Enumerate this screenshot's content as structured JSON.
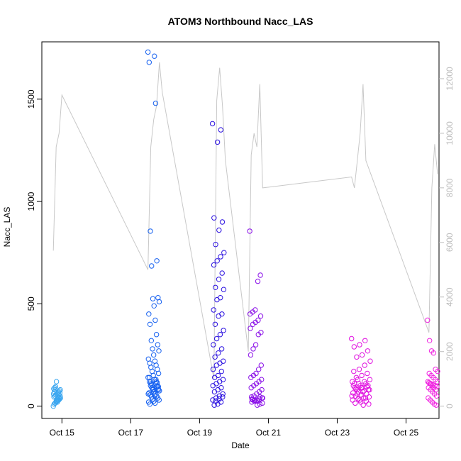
{
  "chart_data": {
    "type": "scatter",
    "title": "ATOM3 Northbound Nacc_LAS",
    "xlabel": "Date",
    "ylabel": "Nacc_LAS",
    "x_ticks": [
      "Oct 15",
      "Oct 17",
      "Oct 19",
      "Oct 21",
      "Oct 23",
      "Oct 25"
    ],
    "y_ticks": [
      0,
      500,
      1000,
      1500
    ],
    "y_right_ticks": [
      0,
      2000,
      4000,
      6000,
      8000,
      10000,
      12000
    ],
    "xlim": [
      "2023-10-14T10:00",
      "2023-10-25T23:00"
    ],
    "ylim": [
      -60,
      1780
    ],
    "y_right_lim": [
      -450,
      13350
    ],
    "grid": false,
    "point_color_gradient": [
      "#3aa6f0",
      "#1560f0",
      "#2a10e0",
      "#8a10e8",
      "#e010e0",
      "#f020e0"
    ],
    "line_color": "#c8c8c8",
    "clusters": [
      {
        "x_range": [
          "2023-10-14T18:00",
          "2023-10-14T23:00"
        ],
        "y_points": [
          0,
          10,
          15,
          20,
          25,
          28,
          30,
          35,
          40,
          45,
          50,
          55,
          60,
          65,
          70,
          75,
          80,
          85,
          90,
          95,
          120,
          20,
          30,
          40,
          50,
          60,
          70,
          80,
          25,
          35,
          45,
          55,
          65
        ]
      },
      {
        "x_range": [
          "2023-10-17T12:00",
          "2023-10-17T20:00"
        ],
        "y_points": [
          1730,
          1710,
          1680,
          1480,
          855,
          710,
          685,
          530,
          525,
          510,
          490,
          450,
          420,
          400,
          350,
          320,
          300,
          280,
          270,
          250,
          230,
          220,
          210,
          200,
          190,
          180,
          170,
          160,
          150,
          140,
          130,
          120,
          110,
          100,
          95,
          90,
          85,
          80,
          75,
          70,
          65,
          60,
          55,
          50,
          45,
          40,
          35,
          30,
          25,
          20,
          15,
          10,
          120,
          110,
          100,
          90,
          80,
          70,
          60,
          50,
          140,
          130,
          120,
          115,
          105,
          95,
          85
        ]
      },
      {
        "x_range": [
          "2023-10-19T09:00",
          "2023-10-19T17:00"
        ],
        "y_points": [
          1380,
          1350,
          1290,
          920,
          900,
          860,
          790,
          750,
          730,
          710,
          690,
          650,
          620,
          580,
          570,
          530,
          520,
          470,
          450,
          440,
          400,
          370,
          350,
          330,
          300,
          280,
          260,
          240,
          220,
          210,
          200,
          180,
          170,
          150,
          140,
          130,
          120,
          110,
          100,
          90,
          80,
          70,
          60,
          50,
          40,
          30,
          20,
          10,
          5,
          45,
          35,
          25
        ]
      },
      {
        "x_range": [
          "2023-10-20T11:00",
          "2023-10-20T20:00"
        ],
        "y_points": [
          855,
          640,
          610,
          470,
          460,
          450,
          440,
          420,
          410,
          400,
          380,
          360,
          350,
          300,
          280,
          250,
          200,
          180,
          160,
          150,
          140,
          130,
          120,
          110,
          100,
          90,
          80,
          70,
          60,
          50,
          45,
          40,
          35,
          30,
          25,
          20,
          15,
          10,
          5,
          30,
          35,
          40,
          45,
          25,
          28,
          32
        ]
      },
      {
        "x_range": [
          "2023-10-23T10:00",
          "2023-10-23T23:00"
        ],
        "y_points": [
          330,
          320,
          300,
          290,
          270,
          250,
          240,
          220,
          200,
          180,
          170,
          160,
          150,
          140,
          130,
          120,
          110,
          100,
          95,
          90,
          85,
          80,
          75,
          70,
          65,
          60,
          55,
          50,
          45,
          40,
          35,
          30,
          25,
          20,
          15,
          10,
          5,
          130,
          120,
          110,
          100,
          90,
          80,
          70,
          60,
          50,
          40,
          30,
          110,
          100,
          90,
          80
        ]
      },
      {
        "x_range": [
          "2023-10-25T15:00",
          "2023-10-25T22:00"
        ],
        "y_points": [
          420,
          320,
          270,
          260,
          180,
          170,
          160,
          150,
          140,
          130,
          120,
          115,
          110,
          105,
          100,
          95,
          90,
          80,
          70,
          60,
          50,
          40,
          30,
          20,
          10,
          5,
          120,
          110,
          100,
          90,
          80
        ]
      }
    ],
    "line_series_right_axis": {
      "name": "",
      "x": [
        "2023-10-14T18:00",
        "2023-10-14T20:00",
        "2023-10-14T22:00",
        "2023-10-15T00:00",
        "2023-10-17T12:00",
        "2023-10-17T14:00",
        "2023-10-17T16:00",
        "2023-10-17T18:00",
        "2023-10-17T20:00",
        "2023-10-17T22:00",
        "2023-10-19T10:00",
        "2023-10-19T12:00",
        "2023-10-19T14:00",
        "2023-10-19T16:00",
        "2023-10-19T18:00",
        "2023-10-20T10:00",
        "2023-10-20T12:00",
        "2023-10-20T14:00",
        "2023-10-20T16:00",
        "2023-10-20T18:00",
        "2023-10-20T20:00",
        "2023-10-23T10:00",
        "2023-10-23T12:00",
        "2023-10-23T14:00",
        "2023-10-23T16:00",
        "2023-10-23T18:00",
        "2023-10-23T20:00",
        "2023-10-25T16:00",
        "2023-10-25T18:00",
        "2023-10-25T20:00",
        "2023-10-25T22:00"
      ],
      "y": [
        5700,
        9500,
        10000,
        11400,
        5000,
        9500,
        10500,
        11000,
        12600,
        11500,
        1000,
        11200,
        12400,
        11000,
        9000,
        2000,
        9200,
        10000,
        9500,
        11800,
        8000,
        8400,
        8000,
        9000,
        10000,
        11800,
        9000,
        2700,
        8000,
        9600,
        8500
      ]
    }
  }
}
